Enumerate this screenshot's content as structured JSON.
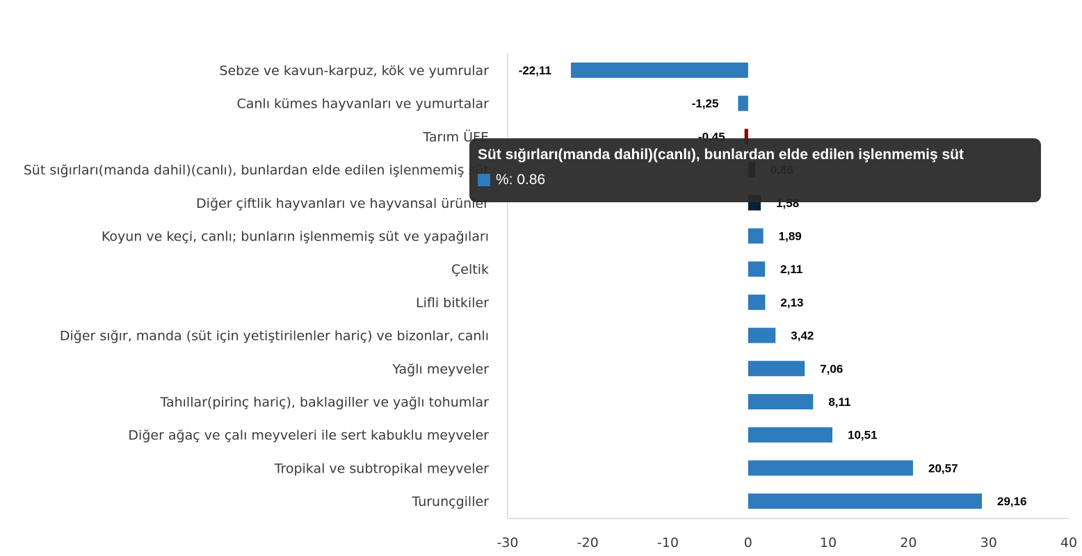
{
  "chart_data": {
    "type": "bar",
    "orientation": "horizontal",
    "categories": [
      "Sebze ve kavun-karpuz, kök ve yumrular",
      "Canlı kümes hayvanları ve yumurtalar",
      "Tarım ÜFE",
      "Süt sığırları(manda dahil)(canlı), bunlardan elde edilen işlenmemiş süt",
      "Diğer çiftlik hayvanları ve hayvansal ürünler",
      "Koyun ve keçi, canlı; bunların işlenmemiş süt ve yapağıları",
      "Çeltik",
      "Lifli bitkiler",
      "Diğer sığır, manda (süt için yetiştirilenler hariç) ve bizonlar, canlı",
      "Yağlı meyveler",
      "Tahıllar(pirinç hariç), baklagiller ve yağlı tohumlar",
      "Diğer ağaç ve çalı meyveleri ile sert kabuklu meyveler",
      "Tropikal ve subtropikal meyveler",
      "Turunçgiller"
    ],
    "values": [
      -22.11,
      -1.25,
      -0.45,
      0.86,
      1.58,
      1.89,
      2.11,
      2.13,
      3.42,
      7.06,
      8.11,
      10.51,
      20.57,
      29.16
    ],
    "value_labels": [
      "-22,11",
      "-1,25",
      "-0,45",
      "0,86",
      "1,58",
      "1,89",
      "2,11",
      "2,13",
      "3,42",
      "7,06",
      "8,11",
      "10,51",
      "20,57",
      "29,16"
    ],
    "bar_colors": [
      "#2e7bbd",
      "#2e7bbd",
      "#8b0000",
      "#0b1f33",
      "#0b1f33",
      "#2e7bbd",
      "#2e7bbd",
      "#2e7bbd",
      "#2e7bbd",
      "#2e7bbd",
      "#2e7bbd",
      "#2e7bbd",
      "#2e7bbd",
      "#2e7bbd"
    ],
    "xlim": [
      -30,
      40
    ],
    "xticks": [
      "-30",
      "-20",
      "-10",
      "0",
      "10",
      "20",
      "30",
      "40"
    ],
    "xtick_values": [
      -30,
      -20,
      -10,
      0,
      10,
      20,
      30,
      40
    ],
    "grid": false,
    "legend": "none"
  },
  "tooltip": {
    "title": "Süt sığırları(manda dahil)(canlı), bunlardan elde edilen işlenmemiş süt",
    "series_label": "%: 0.86",
    "swatch_color": "#2e7bbd"
  }
}
